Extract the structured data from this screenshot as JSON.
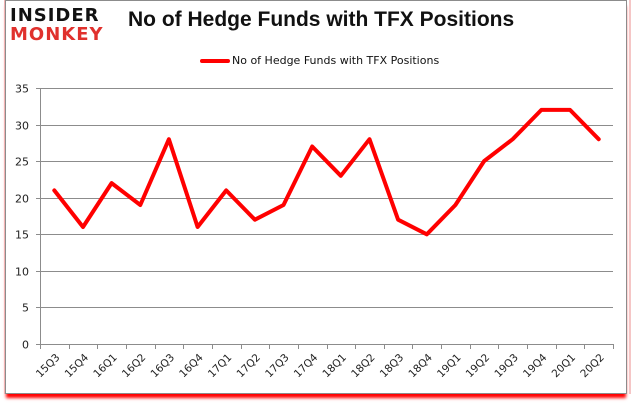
{
  "logo": {
    "line1": "INSIDER",
    "line2": "MONKEY"
  },
  "title": "No of Hedge Funds with TFX Positions",
  "legend": {
    "label": "No of Hedge Funds with TFX Positions",
    "color": "#ff0000"
  },
  "colors": {
    "line": "#ff0000",
    "grid": "#8c8c8c",
    "frame_shadow": "#ff0000",
    "logo_red": "#e0312d"
  },
  "chart_data": {
    "type": "line",
    "title": "No of Hedge Funds with TFX Positions",
    "xlabel": "",
    "ylabel": "",
    "ylim": [
      0,
      35
    ],
    "yticks": [
      0,
      5,
      10,
      15,
      20,
      25,
      30,
      35
    ],
    "grid": true,
    "legend_position": "top",
    "categories": [
      "15Q3",
      "15Q4",
      "16Q1",
      "16Q2",
      "16Q3",
      "16Q4",
      "17Q1",
      "17Q2",
      "17Q3",
      "17Q4",
      "18Q1",
      "18Q2",
      "18Q3",
      "18Q4",
      "19Q1",
      "19Q2",
      "19Q3",
      "19Q4",
      "20Q1",
      "20Q2"
    ],
    "series": [
      {
        "name": "No of Hedge Funds with TFX Positions",
        "values": [
          21,
          16,
          22,
          19,
          28,
          16,
          21,
          17,
          19,
          27,
          23,
          28,
          17,
          15,
          19,
          25,
          28,
          32,
          32,
          28
        ]
      }
    ]
  }
}
